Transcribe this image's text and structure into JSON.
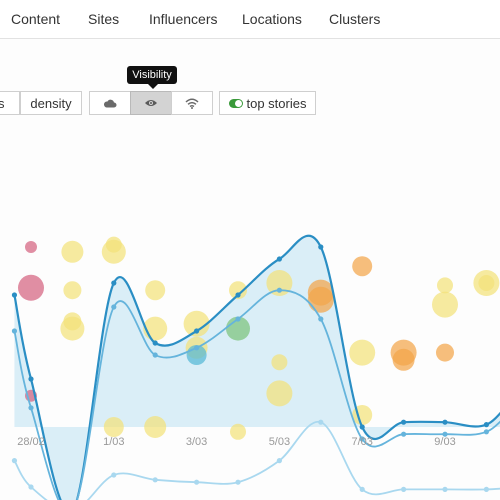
{
  "nav": {
    "tabs": [
      {
        "label": "Content"
      },
      {
        "label": "Sites"
      },
      {
        "label": "Influencers"
      },
      {
        "label": "Locations"
      },
      {
        "label": "Clusters"
      }
    ]
  },
  "toolbar": {
    "partial_label": "s",
    "density_label": "density",
    "icons": [
      "cloud-icon",
      "eye-icon",
      "wifi-icon"
    ],
    "active_icon": "eye-icon",
    "top_stories_label": "top stories",
    "top_stories_on": true
  },
  "tooltip": {
    "text": "Visibility"
  },
  "colors": {
    "line_dark": "#2a8ec4",
    "line_mid": "#65b4dc",
    "line_light": "#a9d8ef",
    "area": "#d4ebf6",
    "bubble_yellow": "#f3e27a",
    "bubble_orange": "#f2a54a",
    "bubble_pink": "#d4637f",
    "bubble_green": "#7cc47c",
    "bubble_teal": "#55b8d6"
  },
  "chart_data": {
    "type": "line",
    "x_tick_labels": [
      "28/02",
      "1/03",
      "3/03",
      "5/03",
      "7/03",
      "9/03"
    ],
    "grid": false,
    "legend": "none",
    "series": [
      {
        "points": [
          [
            -0.2,
            55
          ],
          [
            0,
            20
          ],
          [
            0.5,
            -35
          ],
          [
            1,
            60
          ],
          [
            1.5,
            35
          ],
          [
            2,
            40
          ],
          [
            2.5,
            55
          ],
          [
            3,
            70
          ],
          [
            3.5,
            75
          ],
          [
            4,
            0
          ],
          [
            4.5,
            2
          ],
          [
            5,
            2
          ],
          [
            5.5,
            1
          ],
          [
            6,
            15
          ],
          [
            6.5,
            -2
          ],
          [
            7,
            10
          ],
          [
            7.5,
            -5
          ]
        ]
      },
      {
        "points": [
          [
            -0.2,
            40
          ],
          [
            0,
            8
          ],
          [
            0.5,
            -35
          ],
          [
            1,
            50
          ],
          [
            1.5,
            30
          ],
          [
            2,
            33
          ],
          [
            2.5,
            45
          ],
          [
            3,
            57
          ],
          [
            3.5,
            45
          ],
          [
            4,
            -5
          ],
          [
            4.5,
            -3
          ],
          [
            5,
            -3
          ],
          [
            5.5,
            -2
          ],
          [
            6,
            10
          ],
          [
            6.5,
            -5
          ],
          [
            7,
            5
          ],
          [
            7.5,
            -10
          ]
        ]
      },
      {
        "points": [
          [
            -0.2,
            -14
          ],
          [
            0,
            -25
          ],
          [
            0.5,
            -35
          ],
          [
            1,
            -20
          ],
          [
            1.5,
            -22
          ],
          [
            2,
            -23
          ],
          [
            2.5,
            -23
          ],
          [
            3,
            -14
          ],
          [
            3.5,
            2
          ],
          [
            4,
            -26
          ],
          [
            4.5,
            -26
          ],
          [
            5,
            -26
          ],
          [
            5.5,
            -26
          ],
          [
            6,
            -25
          ],
          [
            6.5,
            -25
          ],
          [
            7,
            -23
          ],
          [
            7.5,
            -24
          ]
        ]
      }
    ],
    "bubbles": [
      {
        "x": 0,
        "y": 75,
        "r": 6,
        "color": "bubble_pink"
      },
      {
        "x": 0,
        "y": 58,
        "r": 13,
        "color": "bubble_pink"
      },
      {
        "x": 0,
        "y": 13,
        "r": 6,
        "color": "bubble_pink"
      },
      {
        "x": 0.5,
        "y": 73,
        "r": 11,
        "color": "bubble_yellow"
      },
      {
        "x": 0.5,
        "y": 57,
        "r": 9,
        "color": "bubble_yellow"
      },
      {
        "x": 0.5,
        "y": 44,
        "r": 9,
        "color": "bubble_yellow"
      },
      {
        "x": 0.5,
        "y": 41,
        "r": 12,
        "color": "bubble_yellow"
      },
      {
        "x": 1,
        "y": 73,
        "r": 12,
        "color": "bubble_yellow"
      },
      {
        "x": 1,
        "y": 76,
        "r": 8,
        "color": "bubble_yellow"
      },
      {
        "x": 1.5,
        "y": 57,
        "r": 10,
        "color": "bubble_yellow"
      },
      {
        "x": 1.5,
        "y": 41,
        "r": 12,
        "color": "bubble_yellow"
      },
      {
        "x": 1,
        "y": 0,
        "r": 10,
        "color": "bubble_yellow"
      },
      {
        "x": 1.5,
        "y": 0,
        "r": 11,
        "color": "bubble_yellow"
      },
      {
        "x": 2,
        "y": 43,
        "r": 13,
        "color": "bubble_yellow"
      },
      {
        "x": 2,
        "y": 33,
        "r": 11,
        "color": "bubble_yellow"
      },
      {
        "x": 2,
        "y": 30,
        "r": 10,
        "color": "bubble_teal"
      },
      {
        "x": 2.5,
        "y": 57,
        "r": 9,
        "color": "bubble_yellow"
      },
      {
        "x": 2.5,
        "y": 41,
        "r": 12,
        "color": "bubble_green"
      },
      {
        "x": 2.5,
        "y": -2,
        "r": 8,
        "color": "bubble_yellow"
      },
      {
        "x": 3,
        "y": 60,
        "r": 13,
        "color": "bubble_yellow"
      },
      {
        "x": 3,
        "y": 27,
        "r": 8,
        "color": "bubble_yellow"
      },
      {
        "x": 3,
        "y": 14,
        "r": 13,
        "color": "bubble_yellow"
      },
      {
        "x": 3.5,
        "y": 56,
        "r": 13,
        "color": "bubble_orange"
      },
      {
        "x": 3.5,
        "y": 53,
        "r": 13,
        "color": "bubble_orange"
      },
      {
        "x": 4,
        "y": 67,
        "r": 10,
        "color": "bubble_orange"
      },
      {
        "x": 4,
        "y": 31,
        "r": 13,
        "color": "bubble_yellow"
      },
      {
        "x": 4,
        "y": 5,
        "r": 10,
        "color": "bubble_yellow"
      },
      {
        "x": 4.5,
        "y": 31,
        "r": 13,
        "color": "bubble_orange"
      },
      {
        "x": 4.5,
        "y": 28,
        "r": 11,
        "color": "bubble_orange"
      },
      {
        "x": 5,
        "y": 31,
        "r": 9,
        "color": "bubble_orange"
      },
      {
        "x": 5,
        "y": 59,
        "r": 8,
        "color": "bubble_yellow"
      },
      {
        "x": 5,
        "y": 51,
        "r": 13,
        "color": "bubble_yellow"
      },
      {
        "x": 5.5,
        "y": 60,
        "r": 8,
        "color": "bubble_yellow"
      },
      {
        "x": 5.5,
        "y": 60,
        "r": 13,
        "color": "bubble_yellow"
      }
    ]
  }
}
